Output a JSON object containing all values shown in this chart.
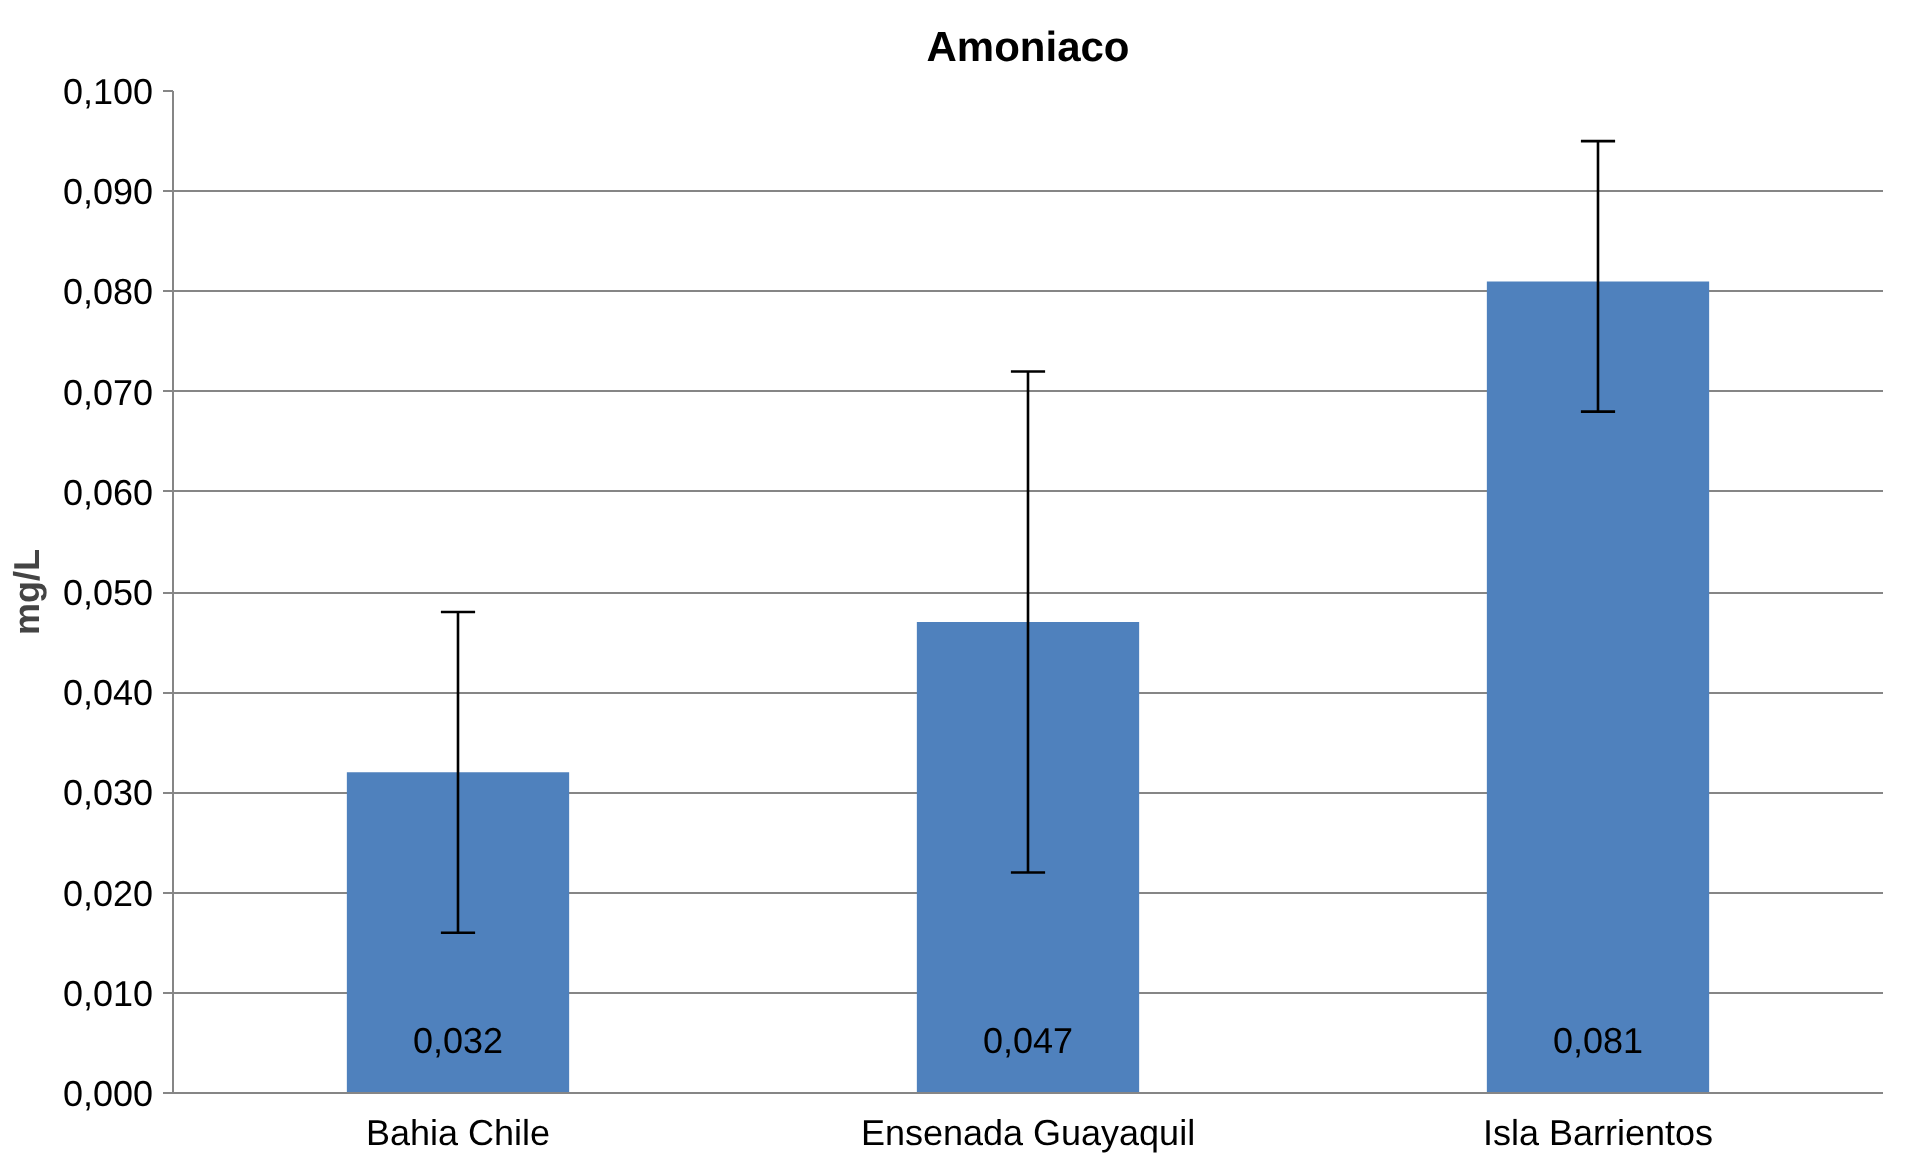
{
  "chart_data": {
    "type": "bar",
    "title": "Amoniaco",
    "ylabel": "mg/L",
    "categories": [
      "Bahia Chile",
      "Ensenada Guayaquil",
      "Isla Barrientos"
    ],
    "values": [
      0.032,
      0.047,
      0.081
    ],
    "color": "#4f81bd",
    "errors": [
      [
        0.016,
        0.048
      ],
      [
        0.022,
        0.072
      ],
      [
        0.068,
        0.095
      ]
    ],
    "value_labels": [
      "0,032",
      "0,047",
      "0,081"
    ],
    "ylim": [
      0,
      0.1
    ],
    "yticks": [
      {
        "value": 0,
        "label": "0,000"
      },
      {
        "value": 0.01,
        "label": "0,010"
      },
      {
        "value": 0.02,
        "label": "0,020"
      },
      {
        "value": 0.03,
        "label": "0,030"
      },
      {
        "value": 0.04,
        "label": "0,040"
      },
      {
        "value": 0.05,
        "label": "0,050"
      },
      {
        "value": 0.06,
        "label": "0,060"
      },
      {
        "value": 0.07,
        "label": "0,070"
      },
      {
        "value": 0.08,
        "label": "0,080"
      },
      {
        "value": 0.09,
        "label": "0,090"
      },
      {
        "value": 0.1,
        "label": "0,100"
      }
    ],
    "grid": "y"
  }
}
